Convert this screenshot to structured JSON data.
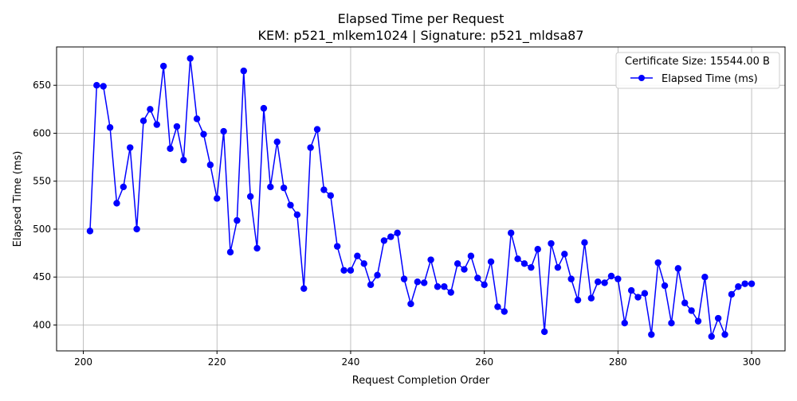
{
  "chart_data": {
    "type": "line",
    "title": "Elapsed Time per Request",
    "subtitle": "KEM: p521_mlkem1024 | Signature: p521_mldsa87",
    "xlabel": "Request Completion Order",
    "ylabel": "Elapsed Time (ms)",
    "xlim": [
      196,
      305
    ],
    "ylim": [
      373,
      690
    ],
    "xticks": [
      200,
      220,
      240,
      260,
      280,
      300
    ],
    "yticks": [
      400,
      450,
      500,
      550,
      600,
      650
    ],
    "grid": true,
    "legend": {
      "position": "top-right",
      "title": "Certificate Size: 15544.00 B",
      "entries": [
        "Elapsed Time (ms)"
      ]
    },
    "series": [
      {
        "name": "Elapsed Time (ms)",
        "color": "#0000ff",
        "marker": "circle",
        "x": [
          201,
          202,
          203,
          204,
          205,
          206,
          207,
          208,
          209,
          210,
          211,
          212,
          213,
          214,
          215,
          216,
          217,
          218,
          219,
          220,
          221,
          222,
          223,
          224,
          225,
          226,
          227,
          228,
          229,
          230,
          231,
          232,
          233,
          234,
          235,
          236,
          237,
          238,
          239,
          240,
          241,
          242,
          243,
          244,
          245,
          246,
          247,
          248,
          249,
          250,
          251,
          252,
          253,
          254,
          255,
          256,
          257,
          258,
          259,
          260,
          261,
          262,
          263,
          264,
          265,
          266,
          267,
          268,
          269,
          270,
          271,
          272,
          273,
          274,
          275,
          276,
          277,
          278,
          279,
          280,
          281,
          282,
          283,
          284,
          285,
          286,
          287,
          288,
          289,
          290,
          291,
          292,
          293,
          294,
          295,
          296,
          297,
          298,
          299,
          300
        ],
        "y": [
          498,
          650,
          649,
          606,
          527,
          544,
          585,
          500,
          613,
          625,
          609,
          670,
          584,
          607,
          572,
          678,
          615,
          599,
          567,
          532,
          602,
          476,
          509,
          665,
          534,
          480,
          626,
          544,
          591,
          543,
          525,
          515,
          438,
          585,
          604,
          541,
          535,
          482,
          457,
          457,
          472,
          464,
          442,
          452,
          488,
          492,
          496,
          448,
          422,
          445,
          444,
          468,
          440,
          440,
          434,
          464,
          458,
          472,
          449,
          442,
          466,
          419,
          414,
          496,
          469,
          464,
          460,
          479,
          393,
          485,
          460,
          474,
          448,
          426,
          486,
          428,
          445,
          444,
          451,
          448,
          402,
          436,
          429,
          433,
          390,
          465,
          441,
          402,
          459,
          423,
          415,
          404,
          450,
          388,
          407,
          390,
          432,
          440,
          443,
          443
        ]
      }
    ]
  }
}
